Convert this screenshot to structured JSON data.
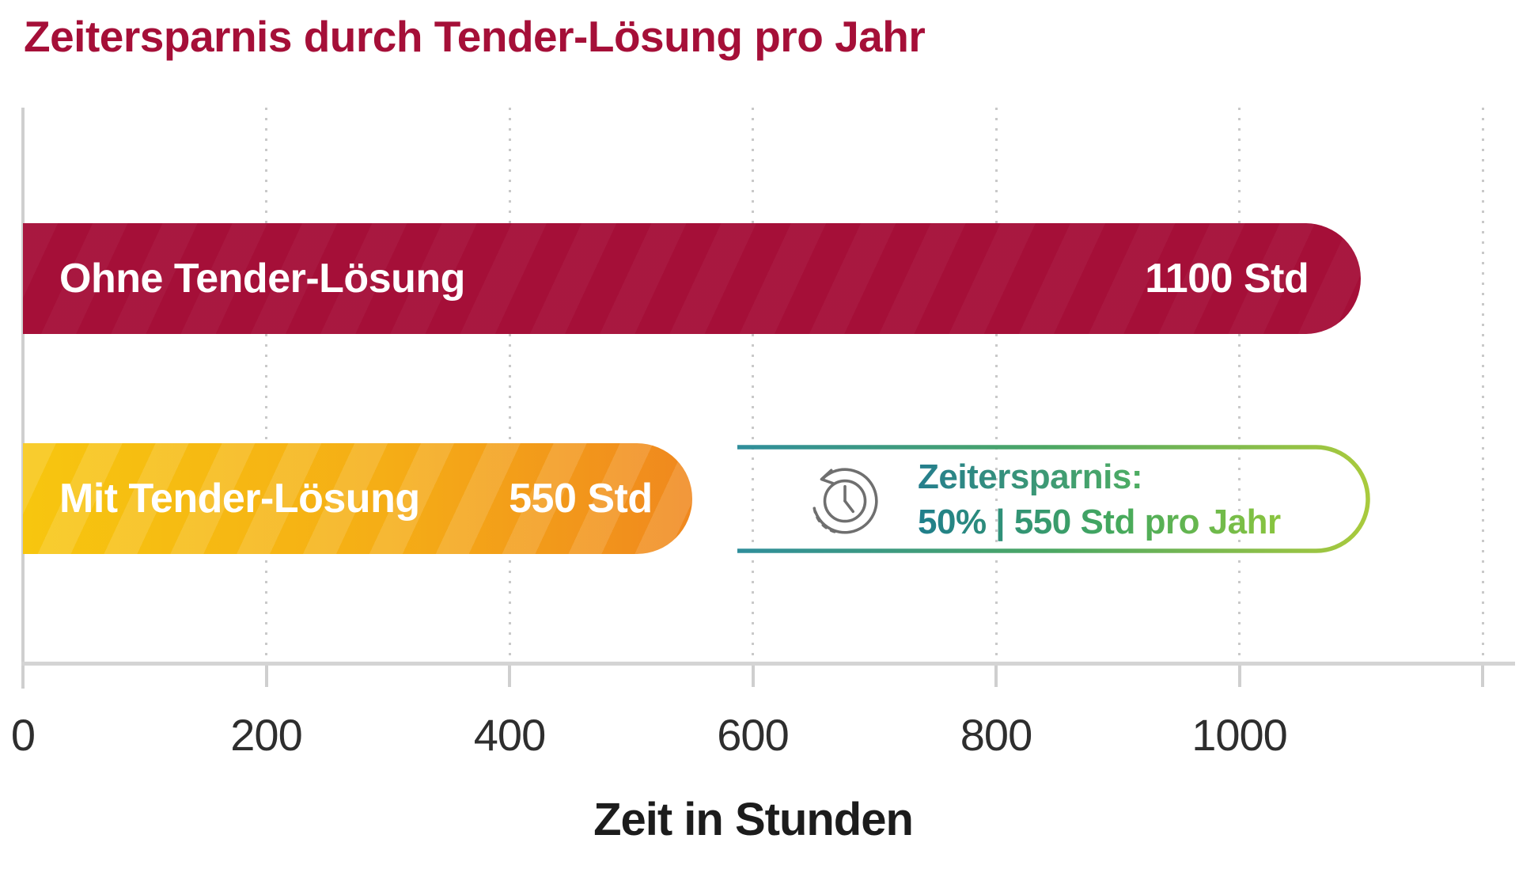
{
  "chart_data": {
    "type": "bar",
    "orientation": "horizontal",
    "title": "Zeitersparnis durch Tender-Lösung pro Jahr",
    "xlabel": "Zeit in Stunden",
    "xlim": [
      0,
      1200
    ],
    "xticks": [
      0,
      200,
      400,
      600,
      800,
      1000,
      1200
    ],
    "xtick_labels": [
      "0",
      "200",
      "400",
      "600",
      "800",
      "1000",
      ""
    ],
    "grid": "dotted-vertical-gridlines",
    "legend": "none",
    "categories": [
      "Ohne Tender-Lösung",
      "Mit Tender-Lösung"
    ],
    "values": [
      1100,
      550
    ],
    "bars": [
      {
        "label": "Ohne Tender-Lösung",
        "value": 1100,
        "value_label": "1100 Std",
        "color": "#A50F38"
      },
      {
        "label": "Mit Tender-Lösung",
        "value": 550,
        "value_label": "550 Std",
        "color_start": "#F7C60F",
        "color_end": "#F0881E"
      }
    ],
    "annotation": {
      "icon": "history-clock-icon",
      "line1": "Zeitersparnis:",
      "line2": "50% | 550 Std pro Jahr",
      "border_gradient": [
        "#2F8E9B",
        "#4CA763",
        "#A9CA3D"
      ],
      "text_teal": "#1F7E8C",
      "text_green": "#45A95D",
      "text_light_green": "#8BC53F",
      "icon_color": "#6F6F6F"
    },
    "colors": {
      "title": "#A50F38",
      "axis": "#cfcfcf",
      "tick_label": "#2e2e2e",
      "axis_title": "#1c1c1c"
    }
  }
}
